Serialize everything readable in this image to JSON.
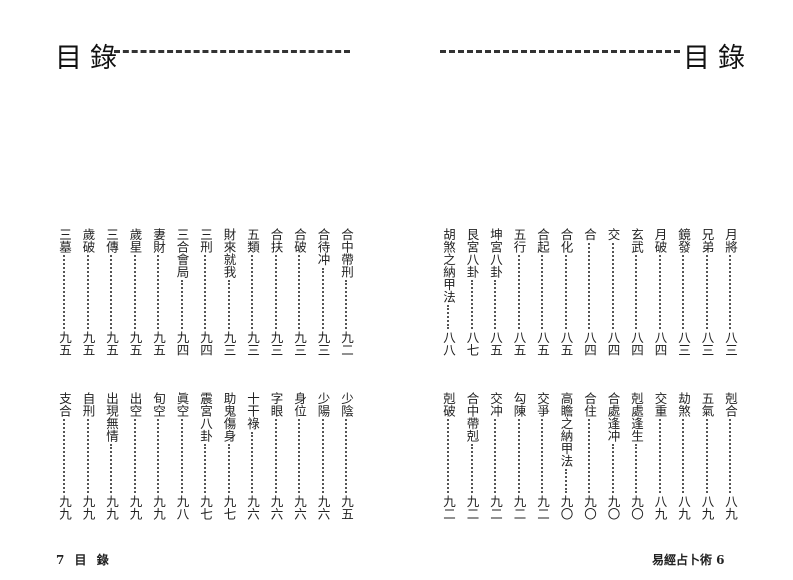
{
  "left_page": {
    "header": "目錄",
    "top": [
      [
        "合中帶刑",
        "九二"
      ],
      [
        "合待冲",
        "九三"
      ],
      [
        "合破",
        "九三"
      ],
      [
        "合扶",
        "九三"
      ],
      [
        "五類",
        "九三"
      ],
      [
        "財來就我",
        "九三"
      ],
      [
        "三刑",
        "九四"
      ],
      [
        "三合會局",
        "九四"
      ],
      [
        "妻財",
        "九五"
      ],
      [
        "歲星",
        "九五"
      ],
      [
        "三傳",
        "九五"
      ],
      [
        "歲破",
        "九五"
      ],
      [
        "三墓",
        "九五"
      ]
    ],
    "bottom": [
      [
        "少陰",
        "九五"
      ],
      [
        "少陽",
        "九六"
      ],
      [
        "身位",
        "九六"
      ],
      [
        "字眼",
        "九六"
      ],
      [
        "十干祿",
        "九六"
      ],
      [
        "助鬼傷身",
        "九七"
      ],
      [
        "震宮八卦",
        "九七"
      ],
      [
        "眞空",
        "九八"
      ],
      [
        "旬空",
        "九九"
      ],
      [
        "出空",
        "九九"
      ],
      [
        "出現無情",
        "九九"
      ],
      [
        "自刑",
        "九九"
      ],
      [
        "支合",
        "九九"
      ]
    ],
    "footer": "7 目 錄"
  },
  "right_page": {
    "header": "目錄",
    "top": [
      [
        "月將",
        "八三"
      ],
      [
        "兄弟",
        "八三"
      ],
      [
        "鏡發",
        "八三"
      ],
      [
        "月破",
        "八四"
      ],
      [
        "玄武",
        "八四"
      ],
      [
        "交",
        "八四"
      ],
      [
        "合",
        "八四"
      ],
      [
        "合化",
        "八五"
      ],
      [
        "合起",
        "八五"
      ],
      [
        "五行",
        "八五"
      ],
      [
        "坤宮八卦",
        "八五"
      ],
      [
        "艮宮八卦",
        "八七"
      ],
      [
        "胡煞之納甲法",
        "八八"
      ]
    ],
    "bottom": [
      [
        "剋合",
        "八九"
      ],
      [
        "五氣",
        "八九"
      ],
      [
        "劫煞",
        "八九"
      ],
      [
        "交重",
        "八九"
      ],
      [
        "剋處逢生",
        "九〇"
      ],
      [
        "合處逢冲",
        "九〇"
      ],
      [
        "合住",
        "九〇"
      ],
      [
        "高瞻之納甲法",
        "九〇"
      ],
      [
        "交爭",
        "九二"
      ],
      [
        "勾陳",
        "九二"
      ],
      [
        "交冲",
        "九二"
      ],
      [
        "合中帶剋",
        "九二"
      ],
      [
        "剋破",
        "九二"
      ]
    ],
    "footer": "易經占卜術 6"
  }
}
